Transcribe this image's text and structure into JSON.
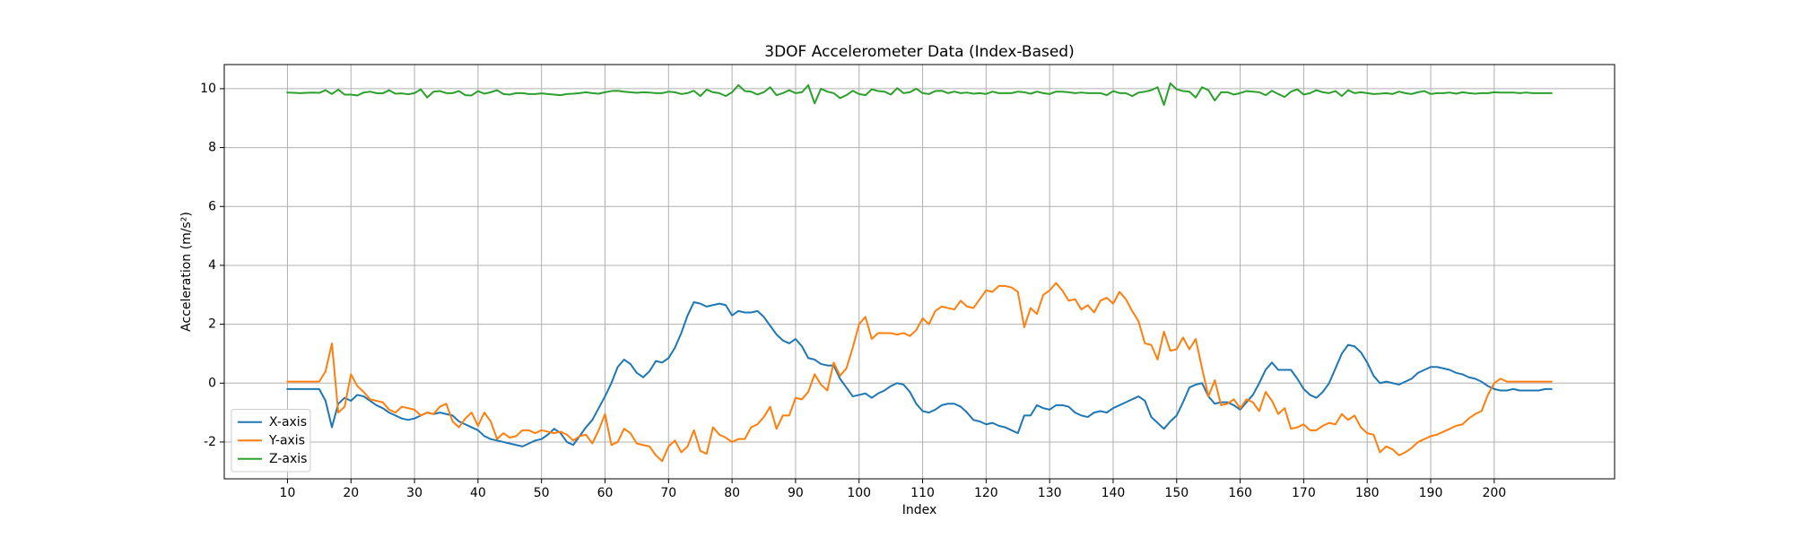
{
  "chart_data": {
    "type": "line",
    "title": "3DOF Accelerometer Data (Index-Based)",
    "x_label": "Index",
    "y_label": "Acceleration (m/s²)",
    "x": [
      10,
      11,
      12,
      13,
      14,
      15,
      16,
      17,
      18,
      19,
      20,
      21,
      22,
      23,
      24,
      25,
      26,
      27,
      28,
      29,
      30,
      31,
      32,
      33,
      34,
      35,
      36,
      37,
      38,
      39,
      40,
      41,
      42,
      43,
      44,
      45,
      46,
      47,
      48,
      49,
      50,
      51,
      52,
      53,
      54,
      55,
      56,
      57,
      58,
      59,
      60,
      61,
      62,
      63,
      64,
      65,
      66,
      67,
      68,
      69,
      70,
      71,
      72,
      73,
      74,
      75,
      76,
      77,
      78,
      79,
      80,
      81,
      82,
      83,
      84,
      85,
      86,
      87,
      88,
      89,
      90,
      91,
      92,
      93,
      94,
      95,
      96,
      97,
      98,
      99,
      100,
      101,
      102,
      103,
      104,
      105,
      106,
      107,
      108,
      109,
      110,
      111,
      112,
      113,
      114,
      115,
      116,
      117,
      118,
      119,
      120,
      121,
      122,
      123,
      124,
      125,
      126,
      127,
      128,
      129,
      130,
      131,
      132,
      133,
      134,
      135,
      136,
      137,
      138,
      139,
      140,
      141,
      142,
      143,
      144,
      145,
      146,
      147,
      148,
      149,
      150,
      151,
      152,
      153,
      154,
      155,
      156,
      157,
      158,
      159,
      160,
      161,
      162,
      163,
      164,
      165,
      166,
      167,
      168,
      169,
      170,
      171,
      172,
      173,
      174,
      175,
      176,
      177,
      178,
      179,
      180,
      181,
      182,
      183,
      184,
      185,
      186,
      187,
      188,
      189,
      190,
      191,
      192,
      193,
      194,
      195,
      196,
      197,
      198,
      199,
      200,
      201,
      202,
      203,
      204,
      205,
      206,
      207,
      208,
      209
    ],
    "series": [
      {
        "name": "X-axis",
        "color": "#1f77b4",
        "values": [
          -0.2,
          -0.2,
          -0.2,
          -0.2,
          -0.2,
          -0.2,
          -0.6,
          -1.5,
          -0.7,
          -0.5,
          -0.6,
          -0.4,
          -0.45,
          -0.6,
          -0.75,
          -0.85,
          -1.0,
          -1.1,
          -1.2,
          -1.25,
          -1.2,
          -1.1,
          -1.0,
          -1.05,
          -1.0,
          -1.05,
          -1.1,
          -1.3,
          -1.4,
          -1.5,
          -1.6,
          -1.8,
          -1.9,
          -1.95,
          -2.0,
          -2.05,
          -2.1,
          -2.15,
          -2.05,
          -1.95,
          -1.9,
          -1.75,
          -1.55,
          -1.7,
          -2.0,
          -2.1,
          -1.8,
          -1.5,
          -1.25,
          -0.85,
          -0.45,
          0.0,
          0.55,
          0.8,
          0.65,
          0.35,
          0.2,
          0.4,
          0.75,
          0.7,
          0.85,
          1.2,
          1.7,
          2.3,
          2.75,
          2.7,
          2.6,
          2.65,
          2.7,
          2.65,
          2.3,
          2.45,
          2.4,
          2.4,
          2.45,
          2.25,
          1.95,
          1.65,
          1.45,
          1.35,
          1.5,
          1.25,
          0.85,
          0.8,
          0.65,
          0.6,
          0.6,
          0.15,
          -0.15,
          -0.45,
          -0.4,
          -0.35,
          -0.5,
          -0.35,
          -0.25,
          -0.1,
          0.0,
          -0.05,
          -0.3,
          -0.7,
          -0.95,
          -1.0,
          -0.9,
          -0.75,
          -0.7,
          -0.7,
          -0.8,
          -1.0,
          -1.25,
          -1.3,
          -1.4,
          -1.35,
          -1.45,
          -1.5,
          -1.6,
          -1.7,
          -1.1,
          -1.1,
          -0.75,
          -0.85,
          -0.9,
          -0.75,
          -0.75,
          -0.8,
          -1.0,
          -1.1,
          -1.15,
          -1.0,
          -0.95,
          -1.0,
          -0.85,
          -0.75,
          -0.65,
          -0.55,
          -0.45,
          -0.6,
          -1.15,
          -1.35,
          -1.55,
          -1.3,
          -1.1,
          -0.65,
          -0.15,
          -0.05,
          0.0,
          -0.45,
          -0.7,
          -0.65,
          -0.65,
          -0.75,
          -0.9,
          -0.65,
          -0.4,
          0.0,
          0.45,
          0.7,
          0.45,
          0.45,
          0.45,
          0.15,
          -0.2,
          -0.4,
          -0.5,
          -0.3,
          0.0,
          0.5,
          1.0,
          1.3,
          1.25,
          1.05,
          0.7,
          0.25,
          0.0,
          0.05,
          0.0,
          -0.05,
          0.05,
          0.15,
          0.35,
          0.45,
          0.55,
          0.55,
          0.5,
          0.45,
          0.35,
          0.3,
          0.2,
          0.15,
          0.05,
          -0.1,
          -0.2,
          -0.25,
          -0.25,
          -0.2,
          -0.25,
          -0.25,
          -0.25,
          -0.25,
          -0.2,
          -0.2
        ]
      },
      {
        "name": "Y-axis",
        "color": "#ff7f0e",
        "values": [
          0.05,
          0.05,
          0.05,
          0.05,
          0.05,
          0.05,
          0.4,
          1.35,
          -1.0,
          -0.8,
          0.3,
          -0.1,
          -0.3,
          -0.55,
          -0.6,
          -0.65,
          -0.9,
          -1.0,
          -0.8,
          -0.85,
          -0.9,
          -1.1,
          -1.0,
          -1.05,
          -0.8,
          -0.7,
          -1.3,
          -1.5,
          -1.2,
          -1.0,
          -1.45,
          -1.0,
          -1.3,
          -1.9,
          -1.7,
          -1.85,
          -1.8,
          -1.6,
          -1.6,
          -1.7,
          -1.6,
          -1.65,
          -1.7,
          -1.65,
          -1.75,
          -1.95,
          -1.8,
          -1.75,
          -2.05,
          -1.6,
          -1.05,
          -2.1,
          -2.0,
          -1.55,
          -1.7,
          -2.05,
          -2.1,
          -2.15,
          -2.45,
          -2.65,
          -2.15,
          -1.95,
          -2.35,
          -2.15,
          -1.6,
          -2.3,
          -2.4,
          -1.5,
          -1.75,
          -1.85,
          -2.0,
          -1.9,
          -1.9,
          -1.5,
          -1.4,
          -1.15,
          -0.8,
          -1.55,
          -1.1,
          -1.1,
          -0.5,
          -0.55,
          -0.3,
          0.3,
          -0.05,
          -0.25,
          0.7,
          0.25,
          0.5,
          1.2,
          2.0,
          2.25,
          1.5,
          1.7,
          1.7,
          1.7,
          1.65,
          1.7,
          1.6,
          1.8,
          2.2,
          2.0,
          2.45,
          2.6,
          2.55,
          2.5,
          2.8,
          2.6,
          2.55,
          2.85,
          3.15,
          3.1,
          3.3,
          3.3,
          3.25,
          3.1,
          1.9,
          2.55,
          2.35,
          3.0,
          3.15,
          3.4,
          3.15,
          2.8,
          2.85,
          2.5,
          2.65,
          2.4,
          2.8,
          2.9,
          2.7,
          3.1,
          2.85,
          2.45,
          2.1,
          1.35,
          1.3,
          0.8,
          1.75,
          1.1,
          1.15,
          1.55,
          1.15,
          1.5,
          0.5,
          -0.45,
          0.1,
          -0.75,
          -0.7,
          -0.55,
          -0.85,
          -0.55,
          -0.65,
          -0.95,
          -0.3,
          -0.6,
          -1.05,
          -0.85,
          -1.55,
          -1.5,
          -1.4,
          -1.6,
          -1.6,
          -1.45,
          -1.35,
          -1.4,
          -1.05,
          -1.25,
          -1.1,
          -1.5,
          -1.7,
          -1.75,
          -2.35,
          -2.15,
          -2.25,
          -2.45,
          -2.35,
          -2.2,
          -2.0,
          -1.9,
          -1.8,
          -1.75,
          -1.65,
          -1.55,
          -1.45,
          -1.4,
          -1.2,
          -1.05,
          -0.95,
          -0.4,
          0.0,
          0.15,
          0.05,
          0.05,
          0.05,
          0.05,
          0.05,
          0.05,
          0.05,
          0.05
        ]
      },
      {
        "name": "Z-axis",
        "color": "#2ca02c",
        "values": [
          9.87,
          9.86,
          9.85,
          9.86,
          9.87,
          9.86,
          9.95,
          9.82,
          9.97,
          9.8,
          9.8,
          9.77,
          9.87,
          9.9,
          9.85,
          9.84,
          9.95,
          9.83,
          9.84,
          9.81,
          9.85,
          9.98,
          9.7,
          9.9,
          9.92,
          9.85,
          9.85,
          9.92,
          9.78,
          9.77,
          9.92,
          9.83,
          9.88,
          9.95,
          9.82,
          9.8,
          9.85,
          9.85,
          9.82,
          9.82,
          9.84,
          9.82,
          9.8,
          9.78,
          9.82,
          9.83,
          9.85,
          9.88,
          9.85,
          9.83,
          9.88,
          9.92,
          9.93,
          9.9,
          9.88,
          9.86,
          9.88,
          9.87,
          9.85,
          9.85,
          9.9,
          9.88,
          9.82,
          9.85,
          9.93,
          9.75,
          9.97,
          9.88,
          9.85,
          9.75,
          9.88,
          10.12,
          9.92,
          9.9,
          9.8,
          9.88,
          10.05,
          9.78,
          9.85,
          9.95,
          9.85,
          9.88,
          10.12,
          9.5,
          10.0,
          9.9,
          9.85,
          9.68,
          9.78,
          9.93,
          9.82,
          9.78,
          9.98,
          9.92,
          9.9,
          9.8,
          10.02,
          9.85,
          9.88,
          10.0,
          9.85,
          9.82,
          9.92,
          9.93,
          9.85,
          9.9,
          9.85,
          9.87,
          9.83,
          9.85,
          9.82,
          9.9,
          9.85,
          9.85,
          9.85,
          9.9,
          9.88,
          9.83,
          9.9,
          9.85,
          9.82,
          9.9,
          9.9,
          9.88,
          9.85,
          9.87,
          9.85,
          9.85,
          9.85,
          9.78,
          9.92,
          9.85,
          9.85,
          9.75,
          9.87,
          9.9,
          9.95,
          10.05,
          9.45,
          10.18,
          9.98,
          9.92,
          9.9,
          9.7,
          10.05,
          9.95,
          9.6,
          9.88,
          9.88,
          9.8,
          9.85,
          9.92,
          9.9,
          9.88,
          9.78,
          9.93,
          9.82,
          9.72,
          9.9,
          9.98,
          9.8,
          9.85,
          9.95,
          9.88,
          9.85,
          9.92,
          9.75,
          9.95,
          9.85,
          9.88,
          9.85,
          9.82,
          9.83,
          9.85,
          9.82,
          9.9,
          9.85,
          9.82,
          9.88,
          9.92,
          9.82,
          9.85,
          9.85,
          9.87,
          9.83,
          9.88,
          9.85,
          9.83,
          9.85,
          9.85,
          9.88,
          9.87,
          9.87,
          9.87,
          9.85,
          9.87,
          9.85,
          9.85,
          9.85,
          9.85
        ]
      }
    ],
    "xlim": [
      0.05,
      218.95
    ],
    "xticks": [
      10,
      20,
      30,
      40,
      50,
      60,
      70,
      80,
      90,
      100,
      110,
      120,
      130,
      140,
      150,
      160,
      170,
      180,
      190,
      200
    ],
    "ylim": [
      -3.25,
      10.82
    ],
    "yticks": [
      -2,
      0,
      2,
      4,
      6,
      8,
      10
    ],
    "grid": true,
    "legend": "lower left"
  }
}
